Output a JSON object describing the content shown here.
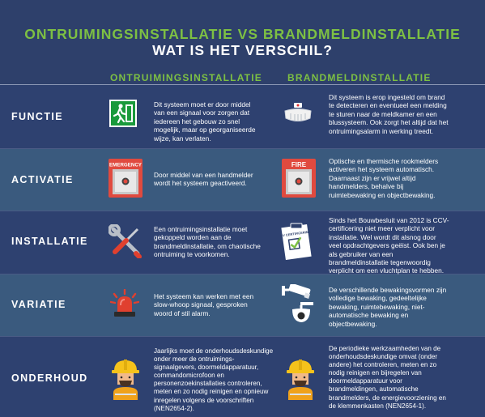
{
  "header": {
    "title_line1": "ONTRUIMINGSINSTALLATIE VS BRANDMELDINSTALLATIE",
    "title_line2": "WAT IS HET VERSCHIL?"
  },
  "columns": {
    "left": "ONTRUIMINGSINSTALLATIE",
    "right": "BRANDMELDINSTALLATIE"
  },
  "rows": [
    {
      "label": "FUNCTIE",
      "left_text": "Dit systeem moet er door middel van een signaal voor zorgen dat iedereen het gebouw zo snel mogelijk, maar op georganiseerde wijze, kan verlaten.",
      "right_text": "Dit systeem is erop ingesteld om brand te detecteren en eventueel een melding te sturen naar de meldkamer en een blussysteem. Ook zorgt het altijd dat het ontruimingsalarm in werking treedt.",
      "left_icon": "emergency-exit-sign-icon",
      "right_icon": "smoke-detector-icon"
    },
    {
      "label": "ACTIVATIE",
      "left_text": "Door middel van een handmelder wordt het systeem geactiveerd.",
      "right_text": "Optische en thermische rookmelders activeren het systeem automatisch. Daarnaast zijn er vrijwel altijd handmelders, behalve bij ruimtebewaking en objectbewaking.",
      "left_icon": "emergency-call-point-icon",
      "right_icon": "fire-call-point-icon",
      "left_icon_label": "EMERGENCY",
      "right_icon_label": "FIRE"
    },
    {
      "label": "INSTALLATIE",
      "left_text": "Een ontruimingsinstallatie moet gekoppeld worden aan de brandmeldinstallatie, om chaotische ontruiming te voorkomen.",
      "right_text": "Sinds het Bouwbesluit van 2012 is CCV-certificering niet meer verplicht voor installatie. Wel wordt dit alsnog door veel opdrachtgevers geëist. Ook ben je als gebruiker van een brandmeldinstallatie tegenwoordig verplicht om een vluchtplan te hebben.",
      "left_icon": "wrench-screwdriver-icon",
      "right_icon": "ccv-certificate-icon",
      "right_icon_label": "CCV CERTIFICERING"
    },
    {
      "label": "VARIATIE",
      "left_text": "Het systeem kan werken met een slow-whoop signaal, gesproken woord of stil alarm.",
      "right_text": "De verschillende bewakingsvormen zijn volledige bewaking, gedeeltelijke bewaking, ruimtebewaking, niet-automatische bewaking en objectbewaking.",
      "left_icon": "siren-light-icon",
      "right_icon": "security-camera-icon"
    },
    {
      "label": "ONDERHOUD",
      "left_text": "Jaarlijks moet de onderhoudsdeskundige onder meer de ontruimings-signaalgevers, doormeldapparatuur, commandomicrofoon en personenzoekinstallaties controleren, meten en zo nodig reinigen en opnieuw inregelen volgens de voorschriften (NEN2654-2).",
      "right_text": "De periodieke werkzaamheden van de onderhoudsdeskundige omvat (onder andere) het controleren, meten en zo nodig reinigen en bijregelen van doormeldapparatuur voor brandmeldingen, automatische brandmelders, de energievoorziening en de klemmenkasten (NEN2654-1).",
      "left_icon": "maintenance-worker-icon",
      "right_icon": "maintenance-worker-icon"
    }
  ],
  "colors": {
    "green": "#7dc043",
    "navy": "#2e406b",
    "row_dark": "#2e4170",
    "row_light": "#3a5a7e"
  }
}
